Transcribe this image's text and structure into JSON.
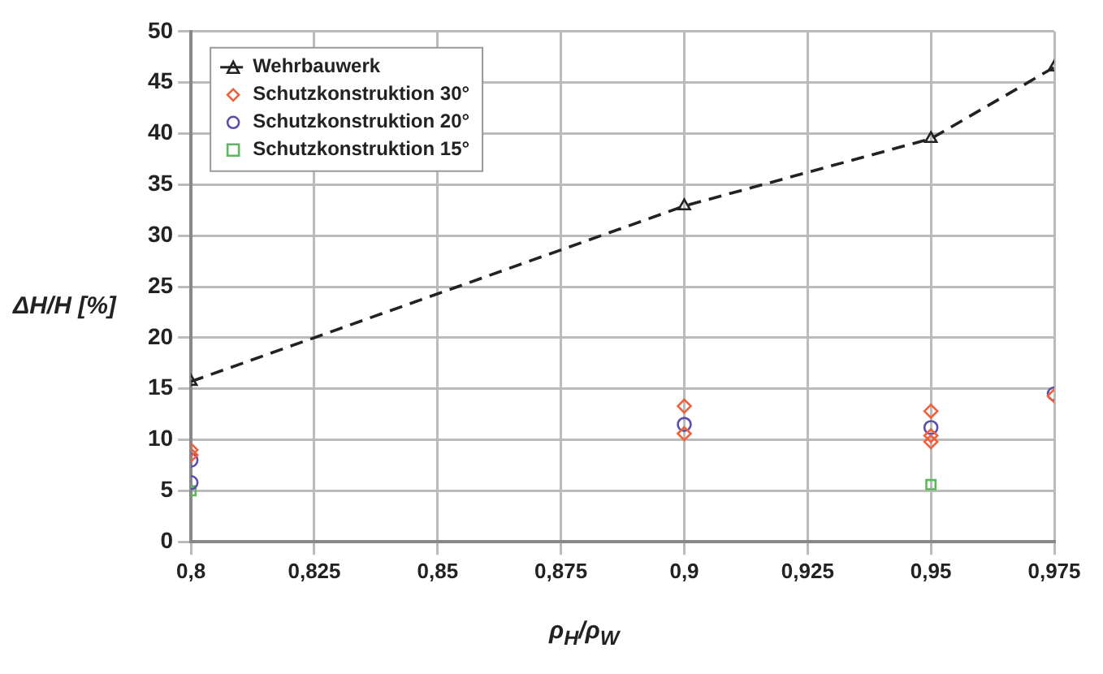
{
  "chart_data": {
    "type": "scatter",
    "xlabel": "ρ$_{H}$/ρ$_{W}$",
    "ylabel": "ΔH/H [%]",
    "xlim": [
      0.8,
      0.975
    ],
    "xticks": [
      {
        "value": 0.8,
        "label": "0,8"
      },
      {
        "value": 0.825,
        "label": "0,825"
      },
      {
        "value": 0.85,
        "label": "0,85"
      },
      {
        "value": 0.875,
        "label": "0,875"
      },
      {
        "value": 0.9,
        "label": "0,9"
      },
      {
        "value": 0.925,
        "label": "0,925"
      },
      {
        "value": 0.95,
        "label": "0,95"
      },
      {
        "value": 0.975,
        "label": "0,975"
      }
    ],
    "ylim": [
      0,
      50
    ],
    "yticks": [
      0,
      5,
      10,
      15,
      20,
      25,
      30,
      35,
      40,
      45,
      50
    ],
    "grid": true,
    "legend": "top left",
    "series": [
      {
        "name": "Wehrbauwerk",
        "type": "line",
        "color": "#222222",
        "marker": "triangle",
        "line_style": "dashed",
        "x": [
          0.8,
          0.9,
          0.95,
          0.975
        ],
        "values": [
          15.7,
          32.9,
          39.5,
          46.5
        ]
      },
      {
        "name": "Schutzkonstruktion 30°",
        "color": "#f0603a",
        "marker": "diamond",
        "x": [
          0.8,
          0.8,
          0.9,
          0.9,
          0.95,
          0.95,
          0.95,
          0.975
        ],
        "values": [
          9,
          8.5,
          13.3,
          10.6,
          12.8,
          10.4,
          9.8,
          14.3
        ]
      },
      {
        "name": "Schutzkonstruktion 20°",
        "color": "#5a4fb0",
        "marker": "circle",
        "x": [
          0.8,
          0.8,
          0.9,
          0.95,
          0.975
        ],
        "values": [
          8,
          5.8,
          11.5,
          11.2,
          14.5
        ]
      },
      {
        "name": "Schutzkonstruktion 15°",
        "color": "#5cb85c",
        "marker": "square",
        "x": [
          0.8,
          0.95
        ],
        "values": [
          5,
          5.6
        ]
      }
    ]
  }
}
